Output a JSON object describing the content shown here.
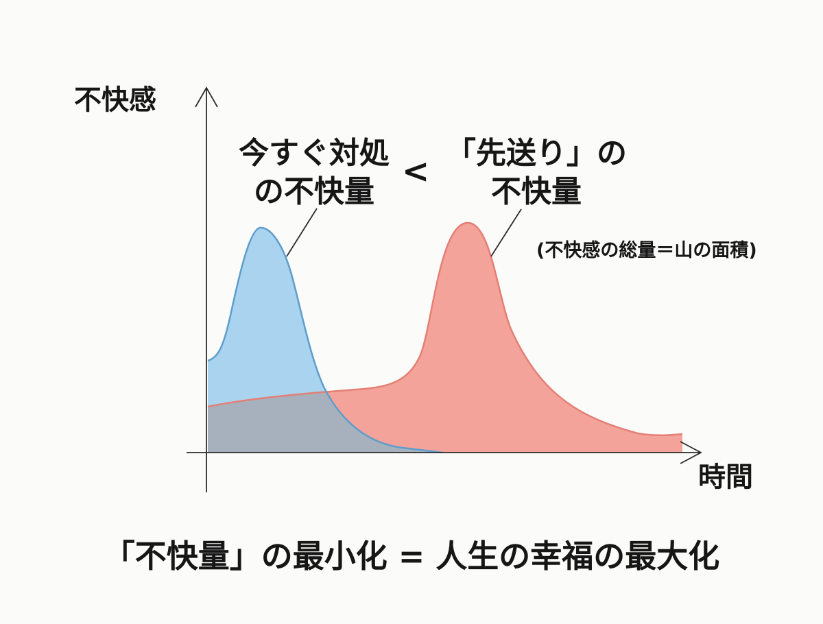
{
  "axes": {
    "y_label": "不快感",
    "x_label": "時間"
  },
  "curves": {
    "now": {
      "label_line1": "今すぐ対処",
      "label_line2": "の不快量",
      "fill_color": "#a9d3ee",
      "stroke_color": "#5d9dcc"
    },
    "later": {
      "label_line1": "「先送り」の",
      "label_line2": "不快量",
      "fill_color": "#f4a39a",
      "stroke_color": "#e47f75"
    },
    "overlap_color": "#a7b1bd"
  },
  "comparison_sign": "<",
  "note": "(不快感の総量＝山の面積)",
  "conclusion": "「不快量」の最小化 = 人生の幸福の最大化"
}
